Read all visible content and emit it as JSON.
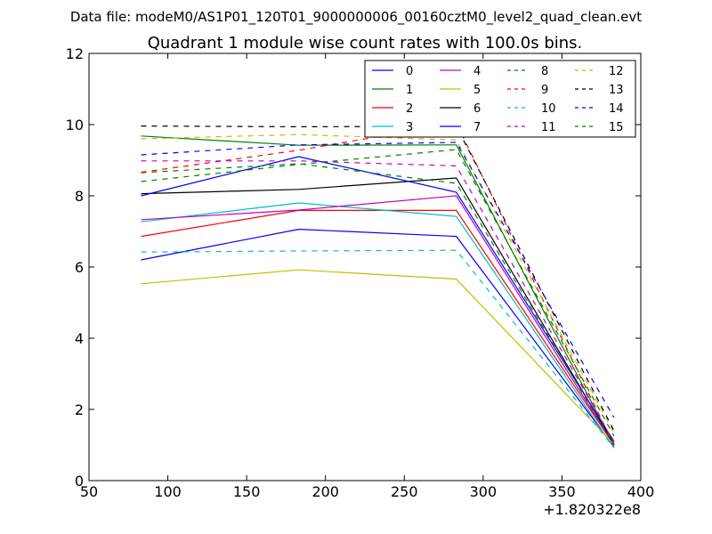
{
  "figure": {
    "suptitle": "Data file: modeM0/AS1P01_120T01_9000000006_00160cztM0_level2_quad_clean.evt",
    "title": "Quadrant 1 module wise count rates with 100.0s bins.",
    "x_offset_label": "+1.820322e8"
  },
  "chart_data": {
    "type": "line",
    "title": "Quadrant 1 module wise count rates with 100.0s bins.",
    "xlabel": "",
    "ylabel": "",
    "x": [
      83,
      183,
      283,
      383
    ],
    "x_offset": "+1.820322e8",
    "xlim": [
      50,
      400
    ],
    "ylim": [
      0,
      12
    ],
    "xticks": [
      50,
      100,
      150,
      200,
      250,
      300,
      350,
      400
    ],
    "yticks": [
      0,
      2,
      4,
      6,
      8,
      10,
      12
    ],
    "grid": false,
    "legend_position": "top-right",
    "legend_columns": 4,
    "series": [
      {
        "name": "0",
        "color": "#0000ff",
        "dash": "solid",
        "values": [
          6.2,
          7.06,
          6.86,
          0.95
        ]
      },
      {
        "name": "1",
        "color": "#008000",
        "dash": "solid",
        "values": [
          9.68,
          9.42,
          9.43,
          1.0
        ]
      },
      {
        "name": "2",
        "color": "#ff0000",
        "dash": "solid",
        "values": [
          6.86,
          7.59,
          7.59,
          1.0
        ]
      },
      {
        "name": "3",
        "color": "#00bfbf",
        "dash": "solid",
        "values": [
          7.27,
          7.8,
          7.42,
          0.92
        ]
      },
      {
        "name": "4",
        "color": "#bf00bf",
        "dash": "solid",
        "values": [
          7.33,
          7.6,
          8.0,
          1.0
        ]
      },
      {
        "name": "5",
        "color": "#bfbf00",
        "dash": "solid",
        "values": [
          5.53,
          5.92,
          5.66,
          1.02
        ]
      },
      {
        "name": "6",
        "color": "#000000",
        "dash": "solid",
        "values": [
          8.06,
          8.18,
          8.5,
          1.02
        ]
      },
      {
        "name": "7",
        "color": "#0000ff",
        "dash": "solid",
        "values": [
          8.0,
          9.1,
          8.1,
          1.1
        ]
      },
      {
        "name": "8",
        "color": "#008000",
        "dash": "dashed",
        "values": [
          8.65,
          8.9,
          8.35,
          1.0
        ]
      },
      {
        "name": "9",
        "color": "#ff0000",
        "dash": "dashed",
        "values": [
          8.66,
          9.28,
          10.04,
          1.0
        ]
      },
      {
        "name": "10",
        "color": "#00bfbf",
        "dash": "dashed",
        "values": [
          6.42,
          6.45,
          6.47,
          0.92
        ]
      },
      {
        "name": "11",
        "color": "#bf00bf",
        "dash": "dashed",
        "values": [
          8.98,
          8.98,
          8.84,
          1.07
        ]
      },
      {
        "name": "12",
        "color": "#bfbf00",
        "dash": "dashed",
        "values": [
          9.6,
          9.72,
          9.57,
          1.35
        ]
      },
      {
        "name": "13",
        "color": "#000000",
        "dash": "dashed",
        "values": [
          9.96,
          9.94,
          9.95,
          1.4
        ]
      },
      {
        "name": "14",
        "color": "#0000ff",
        "dash": "dashed",
        "values": [
          9.15,
          9.43,
          9.5,
          1.77
        ]
      },
      {
        "name": "15",
        "color": "#008000",
        "dash": "dashed",
        "values": [
          8.4,
          8.88,
          9.3,
          1.25
        ]
      }
    ]
  }
}
